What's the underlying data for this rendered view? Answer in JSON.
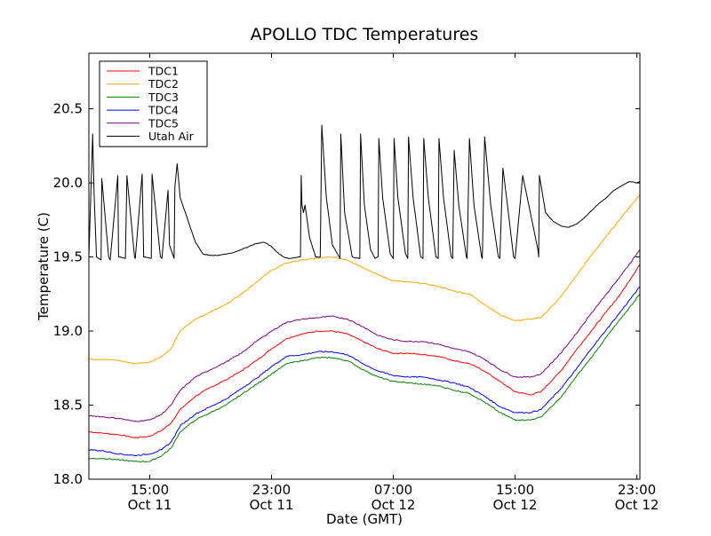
{
  "chart_data": {
    "type": "line",
    "title": "APOLLO TDC Temperatures",
    "xlabel": "Date (GMT)",
    "ylabel": "Temperature (C)",
    "x_unit": "hours since Oct 11 00:00 GMT",
    "xlim": [
      11.0,
      47.2
    ],
    "ylim": [
      18.0,
      20.875
    ],
    "yticks": [
      18.0,
      18.5,
      19.0,
      19.5,
      20.0,
      20.5
    ],
    "ytick_labels": [
      "18.0",
      "18.5",
      "19.0",
      "19.5",
      "20.0",
      "20.5"
    ],
    "xticks": [
      {
        "x": 15,
        "time": "15:00",
        "date": "Oct 11"
      },
      {
        "x": 23,
        "time": "23:00",
        "date": "Oct 11"
      },
      {
        "x": 31,
        "time": "07:00",
        "date": "Oct 12"
      },
      {
        "x": 39,
        "time": "15:00",
        "date": "Oct 12"
      },
      {
        "x": 47,
        "time": "23:00",
        "date": "Oct 12"
      }
    ],
    "legend_position": "top-left",
    "series": [
      {
        "name": "TDC1",
        "color": "#ff0000",
        "x": [
          11.0,
          12.0,
          13.0,
          14.0,
          15.0,
          15.8,
          16.4,
          17.0,
          18.0,
          19.0,
          20.0,
          21.0,
          22.0,
          23.0,
          24.0,
          25.0,
          26.0,
          27.0,
          28.0,
          29.0,
          30.0,
          31.0,
          32.0,
          33.0,
          34.0,
          35.0,
          36.0,
          37.0,
          38.0,
          39.0,
          40.0,
          40.7,
          42.0,
          43.0,
          44.0,
          45.0,
          46.0,
          47.2
        ],
        "y": [
          18.32,
          18.31,
          18.3,
          18.28,
          18.29,
          18.33,
          18.38,
          18.47,
          18.56,
          18.62,
          18.67,
          18.73,
          18.8,
          18.88,
          18.95,
          18.98,
          19.0,
          19.0,
          18.98,
          18.93,
          18.88,
          18.85,
          18.85,
          18.84,
          18.83,
          18.8,
          18.78,
          18.73,
          18.66,
          18.59,
          18.57,
          18.59,
          18.73,
          18.87,
          19.0,
          19.13,
          19.26,
          19.45
        ]
      },
      {
        "name": "TDC2",
        "color": "#ffa500",
        "x": [
          11.0,
          12.0,
          13.0,
          14.0,
          15.0,
          15.8,
          16.4,
          17.0,
          18.0,
          19.0,
          20.0,
          21.0,
          22.0,
          23.0,
          24.0,
          25.0,
          26.0,
          27.0,
          28.0,
          29.0,
          30.0,
          31.0,
          32.0,
          33.0,
          34.0,
          35.0,
          36.0,
          37.0,
          38.0,
          39.0,
          40.0,
          40.7,
          42.0,
          43.0,
          44.0,
          45.0,
          46.0,
          47.2
        ],
        "y": [
          18.81,
          18.81,
          18.8,
          18.78,
          18.79,
          18.83,
          18.88,
          19.0,
          19.08,
          19.13,
          19.18,
          19.25,
          19.33,
          19.41,
          19.46,
          19.48,
          19.49,
          19.5,
          19.48,
          19.43,
          19.38,
          19.34,
          19.33,
          19.32,
          19.3,
          19.27,
          19.25,
          19.18,
          19.11,
          19.07,
          19.08,
          19.09,
          19.23,
          19.37,
          19.51,
          19.64,
          19.77,
          19.92
        ]
      },
      {
        "name": "TDC3",
        "color": "#008000",
        "x": [
          11.0,
          12.0,
          13.0,
          14.0,
          15.0,
          15.8,
          16.4,
          17.0,
          18.0,
          19.0,
          20.0,
          21.0,
          22.0,
          23.0,
          24.0,
          25.0,
          26.0,
          27.0,
          28.0,
          29.0,
          30.0,
          31.0,
          32.0,
          33.0,
          34.0,
          35.0,
          36.0,
          37.0,
          38.0,
          39.0,
          40.0,
          40.7,
          42.0,
          43.0,
          44.0,
          45.0,
          46.0,
          47.2
        ],
        "y": [
          18.14,
          18.14,
          18.13,
          18.12,
          18.12,
          18.16,
          18.21,
          18.32,
          18.4,
          18.45,
          18.5,
          18.57,
          18.64,
          18.71,
          18.78,
          18.8,
          18.82,
          18.82,
          18.8,
          18.74,
          18.69,
          18.66,
          18.65,
          18.64,
          18.63,
          18.6,
          18.58,
          18.52,
          18.45,
          18.4,
          18.4,
          18.42,
          18.55,
          18.69,
          18.82,
          18.96,
          19.09,
          19.25
        ]
      },
      {
        "name": "TDC4",
        "color": "#0000ff",
        "x": [
          11.0,
          12.0,
          13.0,
          14.0,
          15.0,
          15.8,
          16.4,
          17.0,
          18.0,
          19.0,
          20.0,
          21.0,
          22.0,
          23.0,
          24.0,
          25.0,
          26.0,
          27.0,
          28.0,
          29.0,
          30.0,
          31.0,
          32.0,
          33.0,
          34.0,
          35.0,
          36.0,
          37.0,
          38.0,
          39.0,
          40.0,
          40.7,
          42.0,
          43.0,
          44.0,
          45.0,
          46.0,
          47.2
        ],
        "y": [
          18.2,
          18.19,
          18.17,
          18.16,
          18.17,
          18.2,
          18.25,
          18.36,
          18.44,
          18.49,
          18.54,
          18.61,
          18.68,
          18.76,
          18.83,
          18.84,
          18.86,
          18.86,
          18.84,
          18.78,
          18.73,
          18.7,
          18.69,
          18.69,
          18.67,
          18.65,
          18.62,
          18.56,
          18.49,
          18.45,
          18.45,
          18.47,
          18.61,
          18.74,
          18.88,
          19.01,
          19.14,
          19.3
        ]
      },
      {
        "name": "TDC5",
        "color": "#800080",
        "x": [
          11.0,
          12.0,
          13.0,
          14.0,
          15.0,
          15.8,
          16.4,
          17.0,
          18.0,
          19.0,
          20.0,
          21.0,
          22.0,
          23.0,
          24.0,
          25.0,
          26.0,
          27.0,
          28.0,
          29.0,
          30.0,
          31.0,
          32.0,
          33.0,
          34.0,
          35.0,
          36.0,
          37.0,
          38.0,
          39.0,
          40.0,
          40.7,
          42.0,
          43.0,
          44.0,
          45.0,
          46.0,
          47.2
        ],
        "y": [
          18.43,
          18.42,
          18.41,
          18.39,
          18.4,
          18.44,
          18.5,
          18.6,
          18.69,
          18.74,
          18.79,
          18.85,
          18.93,
          19.0,
          19.06,
          19.08,
          19.09,
          19.1,
          19.08,
          19.03,
          18.97,
          18.94,
          18.93,
          18.93,
          18.91,
          18.88,
          18.86,
          18.81,
          18.74,
          18.69,
          18.69,
          18.71,
          18.85,
          18.98,
          19.12,
          19.25,
          19.38,
          19.55
        ]
      },
      {
        "name": "Utah Air",
        "color": "#000000",
        "x": [
          11.0,
          11.25,
          11.35,
          11.5,
          11.8,
          11.85,
          12.3,
          12.4,
          12.9,
          12.95,
          13.4,
          13.5,
          14.0,
          14.05,
          14.5,
          14.6,
          15.1,
          15.15,
          15.7,
          15.8,
          16.2,
          16.3,
          16.6,
          16.65,
          16.8,
          17.0,
          17.5,
          18.0,
          18.5,
          19.0,
          19.5,
          20.0,
          20.5,
          21.0,
          21.5,
          22.0,
          22.5,
          23.0,
          23.5,
          23.8,
          24.1,
          24.9,
          24.95,
          25.0,
          25.1,
          25.2,
          25.5,
          25.9,
          26.2,
          26.3,
          26.6,
          27.0,
          27.5,
          27.55,
          27.8,
          28.3,
          28.8,
          28.85,
          29.1,
          29.5,
          29.8,
          30.0,
          30.05,
          30.3,
          30.8,
          31.0,
          31.05,
          31.3,
          31.8,
          31.95,
          32.0,
          32.3,
          32.8,
          32.95,
          33.0,
          33.3,
          33.8,
          33.95,
          34.0,
          34.3,
          34.8,
          34.9,
          35.0,
          35.3,
          35.8,
          35.85,
          36.0,
          36.3,
          36.8,
          36.85,
          37.0,
          37.4,
          37.9,
          38.0,
          38.2,
          38.5,
          38.9,
          39.0,
          39.5,
          40.0,
          40.5,
          40.55,
          40.6,
          41.0,
          41.5,
          42.0,
          42.5,
          43.0,
          43.5,
          44.0,
          44.5,
          45.0,
          45.5,
          46.0,
          46.5,
          47.0,
          47.2
        ],
        "y": [
          19.5,
          20.33,
          19.9,
          19.5,
          19.48,
          20.03,
          19.5,
          19.48,
          20.05,
          19.5,
          19.49,
          20.05,
          19.5,
          19.49,
          20.06,
          19.5,
          19.49,
          20.06,
          19.5,
          19.49,
          19.95,
          19.58,
          19.49,
          19.97,
          20.13,
          19.9,
          19.75,
          19.6,
          19.52,
          19.51,
          19.51,
          19.52,
          19.53,
          19.55,
          19.57,
          19.59,
          19.6,
          19.57,
          19.52,
          19.5,
          19.49,
          19.5,
          20.05,
          19.85,
          19.8,
          19.85,
          19.63,
          19.5,
          19.5,
          20.39,
          19.9,
          19.58,
          19.49,
          20.33,
          19.8,
          19.5,
          19.49,
          20.33,
          19.85,
          19.55,
          19.49,
          19.5,
          20.3,
          19.9,
          19.52,
          19.49,
          20.3,
          19.9,
          19.52,
          19.49,
          20.31,
          19.9,
          19.5,
          19.49,
          20.3,
          19.9,
          19.5,
          19.49,
          20.3,
          19.9,
          19.5,
          19.49,
          20.22,
          19.85,
          19.5,
          19.49,
          20.3,
          19.85,
          19.5,
          19.49,
          20.31,
          19.85,
          19.5,
          19.49,
          20.1,
          19.85,
          19.5,
          19.49,
          20.05,
          19.8,
          19.55,
          19.5,
          20.05,
          19.8,
          19.74,
          19.71,
          19.7,
          19.72,
          19.76,
          19.81,
          19.86,
          19.9,
          19.95,
          19.98,
          20.01,
          20.0,
          20.01
        ]
      }
    ]
  }
}
